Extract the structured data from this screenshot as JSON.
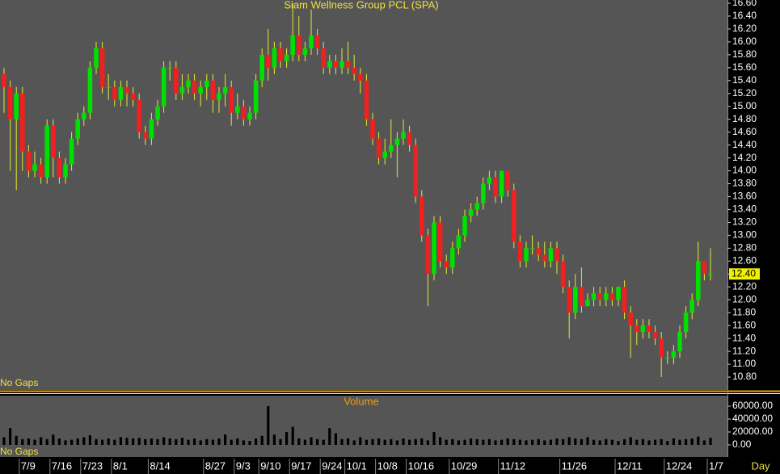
{
  "chart_data": {
    "type": "candlestick",
    "title": "Siam Wellness Group PCL (SPA)",
    "categories": [
      null,
      null,
      null,
      "7/9",
      null,
      null,
      null,
      null,
      "7/16",
      null,
      null,
      null,
      null,
      "7/23",
      null,
      null,
      null,
      null,
      "8/1",
      null,
      null,
      null,
      null,
      null,
      "8/14",
      null,
      null,
      null,
      null,
      null,
      null,
      null,
      null,
      "8/27",
      null,
      null,
      null,
      null,
      "9/3",
      null,
      null,
      null,
      "9/10",
      null,
      null,
      null,
      null,
      "9/17",
      null,
      null,
      null,
      null,
      "9/24",
      null,
      null,
      null,
      "10/1",
      null,
      null,
      null,
      null,
      "10/8",
      null,
      null,
      null,
      null,
      "10/16",
      null,
      null,
      null,
      null,
      null,
      null,
      "10/29",
      null,
      null,
      null,
      null,
      null,
      null,
      null,
      "11/12",
      null,
      null,
      null,
      null,
      null,
      null,
      null,
      null,
      null,
      "11/26",
      null,
      null,
      null,
      null,
      null,
      null,
      null,
      null,
      "12/11",
      null,
      null,
      null,
      null,
      null,
      null,
      null,
      "12/24",
      null,
      null,
      null,
      null,
      null,
      null,
      "1/7"
    ],
    "open": [
      15.5,
      15.3,
      14.8,
      15.2,
      14.3,
      14.0,
      14.1,
      13.9,
      14.7,
      14.2,
      13.9,
      14.1,
      14.5,
      14.8,
      14.9,
      15.6,
      15.9,
      15.3,
      15.3,
      15.1,
      15.3,
      15.2,
      15.1,
      14.6,
      14.5,
      14.8,
      15.0,
      15.6,
      15.6,
      15.2,
      15.3,
      15.4,
      15.2,
      15.3,
      15.4,
      15.1,
      15.2,
      15.3,
      14.9,
      15.0,
      14.8,
      14.9,
      15.4,
      15.8,
      15.6,
      15.9,
      15.7,
      15.8,
      16.1,
      15.8,
      15.9,
      16.1,
      15.9,
      15.6,
      15.7,
      15.6,
      15.7,
      15.6,
      15.5,
      15.4,
      14.8,
      14.5,
      14.2,
      14.3,
      14.4,
      14.5,
      14.6,
      14.4,
      13.6,
      13.0,
      12.4,
      13.2,
      12.6,
      12.5,
      12.8,
      13.0,
      13.3,
      13.4,
      13.5,
      13.8,
      13.9,
      13.6,
      14.0,
      13.7,
      12.9,
      12.6,
      12.8,
      12.8,
      12.7,
      12.6,
      12.8,
      12.6,
      12.2,
      11.8,
      12.2,
      11.9,
      12.0,
      12.1,
      12.0,
      12.1,
      12.0,
      12.2,
      11.8,
      11.6,
      11.5,
      11.6,
      11.5,
      11.4,
      11.1,
      11.1,
      11.2,
      11.5,
      11.8,
      12.0,
      12.6,
      12.4
    ],
    "high": [
      15.6,
      15.4,
      15.3,
      15.3,
      14.4,
      14.3,
      14.2,
      14.8,
      14.8,
      14.3,
      14.2,
      14.6,
      14.9,
      15.0,
      15.7,
      16.0,
      16.0,
      15.5,
      15.4,
      15.4,
      15.4,
      15.3,
      15.2,
      14.7,
      14.9,
      15.1,
      15.7,
      15.7,
      15.7,
      15.5,
      15.5,
      15.5,
      15.4,
      15.5,
      15.5,
      15.3,
      15.5,
      15.4,
      15.2,
      15.1,
      15.0,
      15.5,
      15.9,
      16.2,
      16.0,
      16.0,
      15.9,
      16.6,
      16.4,
      16.0,
      16.5,
      16.2,
      16.0,
      15.8,
      15.8,
      15.9,
      16.0,
      15.8,
      15.6,
      15.5,
      14.9,
      14.6,
      14.5,
      14.8,
      14.6,
      14.8,
      14.7,
      14.5,
      13.7,
      13.1,
      13.3,
      13.3,
      12.7,
      12.9,
      13.1,
      13.4,
      13.5,
      13.6,
      13.9,
      14.0,
      14.0,
      14.0,
      14.0,
      13.8,
      13.0,
      12.9,
      13.0,
      12.9,
      12.9,
      12.9,
      12.9,
      12.7,
      12.3,
      12.4,
      12.5,
      12.1,
      12.2,
      12.2,
      12.2,
      12.2,
      12.2,
      12.3,
      11.9,
      11.7,
      11.7,
      11.7,
      11.6,
      11.5,
      11.2,
      11.3,
      11.6,
      11.9,
      12.1,
      12.9,
      12.6,
      12.8
    ],
    "low": [
      14.9,
      14.0,
      13.7,
      14.0,
      13.9,
      13.9,
      13.8,
      13.8,
      13.9,
      13.8,
      13.8,
      14.0,
      14.4,
      14.7,
      14.8,
      15.5,
      15.2,
      15.1,
      15.0,
      15.0,
      15.0,
      15.0,
      14.5,
      14.4,
      14.4,
      14.7,
      14.9,
      15.4,
      15.1,
      15.1,
      15.2,
      15.1,
      15.0,
      15.1,
      14.9,
      14.9,
      15.0,
      14.7,
      14.8,
      14.7,
      14.7,
      14.8,
      15.3,
      15.4,
      15.5,
      15.6,
      15.6,
      15.7,
      15.7,
      15.7,
      15.8,
      15.8,
      15.5,
      15.5,
      15.5,
      15.5,
      15.5,
      15.4,
      15.2,
      14.7,
      14.4,
      14.1,
      14.1,
      14.2,
      13.9,
      14.4,
      14.3,
      13.5,
      12.9,
      11.9,
      12.3,
      12.5,
      12.4,
      12.4,
      12.7,
      12.9,
      13.2,
      13.3,
      13.4,
      13.7,
      13.5,
      13.5,
      13.6,
      12.8,
      12.5,
      12.5,
      12.7,
      12.6,
      12.5,
      12.5,
      12.4,
      12.1,
      11.4,
      11.7,
      11.8,
      11.9,
      11.9,
      11.9,
      11.9,
      11.9,
      11.9,
      11.7,
      11.1,
      11.3,
      11.4,
      11.4,
      11.3,
      10.8,
      11.0,
      11.0,
      11.1,
      11.4,
      11.7,
      11.9,
      12.3,
      12.3
    ],
    "close": [
      15.3,
      14.8,
      15.2,
      14.3,
      14.0,
      14.1,
      13.9,
      14.7,
      14.2,
      13.9,
      14.1,
      14.5,
      14.8,
      14.9,
      15.6,
      15.9,
      15.3,
      15.3,
      15.1,
      15.3,
      15.2,
      15.1,
      14.6,
      14.5,
      14.8,
      15.0,
      15.6,
      15.6,
      15.2,
      15.3,
      15.4,
      15.2,
      15.3,
      15.4,
      15.1,
      15.2,
      15.3,
      14.9,
      15.0,
      14.8,
      14.9,
      15.4,
      15.8,
      15.6,
      15.9,
      15.7,
      15.8,
      16.1,
      15.8,
      15.9,
      16.1,
      15.9,
      15.6,
      15.7,
      15.6,
      15.7,
      15.6,
      15.5,
      15.4,
      14.8,
      14.5,
      14.2,
      14.3,
      14.4,
      14.5,
      14.6,
      14.4,
      13.6,
      13.0,
      12.4,
      13.2,
      12.6,
      12.5,
      12.8,
      13.0,
      13.3,
      13.4,
      13.5,
      13.8,
      13.9,
      13.6,
      14.0,
      13.7,
      12.9,
      12.6,
      12.8,
      12.8,
      12.7,
      12.6,
      12.8,
      12.6,
      12.2,
      11.8,
      12.2,
      11.9,
      12.0,
      12.1,
      12.0,
      12.1,
      12.0,
      12.2,
      11.8,
      11.6,
      11.5,
      11.6,
      11.5,
      11.4,
      11.1,
      11.1,
      11.2,
      11.5,
      11.8,
      12.0,
      12.6,
      12.4,
      12.4
    ],
    "volume": [
      12000,
      26000,
      14000,
      9000,
      10000,
      8000,
      12000,
      9000,
      16000,
      10000,
      7000,
      8000,
      10000,
      12000,
      15000,
      9000,
      8000,
      10000,
      8000,
      12000,
      11000,
      10000,
      11000,
      9000,
      10000,
      9000,
      12000,
      10000,
      9000,
      11000,
      8000,
      10000,
      7000,
      9000,
      8000,
      10000,
      16000,
      8000,
      10000,
      7000,
      6000,
      10000,
      14000,
      60000,
      16000,
      9000,
      20000,
      28000,
      10000,
      8000,
      12000,
      9000,
      8000,
      26000,
      18000,
      9000,
      10000,
      7000,
      12000,
      8000,
      9000,
      10000,
      8000,
      9000,
      7000,
      10000,
      8000,
      9000,
      10000,
      7000,
      20000,
      12000,
      8000,
      9000,
      7000,
      8000,
      10000,
      9000,
      8000,
      9000,
      7000,
      8000,
      10000,
      9000,
      8000,
      7000,
      8000,
      9000,
      7000,
      8000,
      10000,
      9000,
      12000,
      10000,
      9000,
      12000,
      8000,
      7000,
      9000,
      8000,
      6000,
      9000,
      12000,
      8000,
      9000,
      7000,
      8000,
      9000,
      6000,
      10000,
      8000,
      9000,
      10000,
      13000,
      7000,
      11000
    ],
    "up_color": "#00e000",
    "down_color": "#f02020",
    "wick_color": "#e8e830",
    "volume_color": "#000000",
    "ylim": [
      10.6,
      16.65
    ],
    "yticks": [
      {
        "value": 10.8,
        "label": "10.80"
      },
      {
        "value": 11.0,
        "label": "11.00"
      },
      {
        "value": 11.2,
        "label": "11.20"
      },
      {
        "value": 11.4,
        "label": "11.40"
      },
      {
        "value": 11.6,
        "label": "11.60"
      },
      {
        "value": 11.8,
        "label": "11.80"
      },
      {
        "value": 12.0,
        "label": "12.00"
      },
      {
        "value": 12.2,
        "label": "12.20"
      },
      {
        "value": 12.4,
        "label": "12.40"
      },
      {
        "value": 12.6,
        "label": "12.60"
      },
      {
        "value": 12.8,
        "label": "12.80"
      },
      {
        "value": 13.0,
        "label": "13.00"
      },
      {
        "value": 13.2,
        "label": "13.20"
      },
      {
        "value": 13.4,
        "label": "13.40"
      },
      {
        "value": 13.6,
        "label": "13.60"
      },
      {
        "value": 13.8,
        "label": "13.80"
      },
      {
        "value": 14.0,
        "label": "14.00"
      },
      {
        "value": 14.2,
        "label": "14.20"
      },
      {
        "value": 14.4,
        "label": "14.40"
      },
      {
        "value": 14.6,
        "label": "14.60"
      },
      {
        "value": 14.8,
        "label": "14.80"
      },
      {
        "value": 15.0,
        "label": "15.00"
      },
      {
        "value": 15.2,
        "label": "15.20"
      },
      {
        "value": 15.4,
        "label": "15.40"
      },
      {
        "value": 15.6,
        "label": "15.60"
      },
      {
        "value": 15.8,
        "label": "15.80"
      },
      {
        "value": 16.0,
        "label": "16.00"
      },
      {
        "value": 16.2,
        "label": "16.20"
      },
      {
        "value": 16.4,
        "label": "16.40"
      },
      {
        "value": 16.6,
        "label": "16.60"
      }
    ],
    "last_price": {
      "value": 12.4,
      "label": "12.40"
    },
    "volume_title": "Volume",
    "volume_ylim": [
      -11250,
      76250
    ],
    "volume_yticks": [
      {
        "value": 0,
        "label": "0.00"
      },
      {
        "value": 20000,
        "label": "20000.00"
      },
      {
        "value": 40000,
        "label": "40000.00"
      },
      {
        "value": 60000,
        "label": "60000.00"
      }
    ],
    "price_note": "No Gaps",
    "volume_note": "No Gaps",
    "period": "Day"
  }
}
